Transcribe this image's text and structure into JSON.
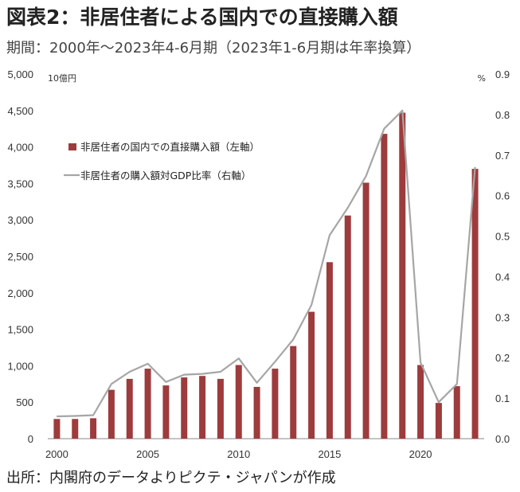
{
  "title": "図表2：非居住者による国内での直接購入額",
  "subtitle": "期間：2000年～2023年4-6月期（2023年1-6月期は年率換算）",
  "source": "出所：内閣府のデータよりピクテ・ジャパンが作成",
  "colors": {
    "bar": "#9e3b3d",
    "line": "#a6a6a6",
    "axis": "#888888"
  },
  "chart_data": {
    "type": "bar+line",
    "categories": [
      "2000",
      "2001",
      "2002",
      "2003",
      "2004",
      "2005",
      "2006",
      "2007",
      "2008",
      "2009",
      "2010",
      "2011",
      "2012",
      "2013",
      "2014",
      "2015",
      "2016",
      "2017",
      "2018",
      "2019",
      "2020",
      "2021",
      "2022",
      "2023"
    ],
    "series": [
      {
        "name": "非居住者の国内での直接購入額（左軸）",
        "type": "bar",
        "axis": "left",
        "values": [
          270,
          270,
          280,
          670,
          820,
          960,
          730,
          840,
          860,
          820,
          1010,
          710,
          960,
          1270,
          1740,
          2420,
          3060,
          3510,
          4180,
          4470,
          1010,
          490,
          720,
          3700
        ]
      },
      {
        "name": "非居住者の購入額対GDP比率（右軸）",
        "type": "line",
        "axis": "right",
        "values": [
          0.055,
          0.056,
          0.058,
          0.135,
          0.165,
          0.185,
          0.14,
          0.158,
          0.16,
          0.165,
          0.198,
          0.138,
          0.19,
          0.245,
          0.33,
          0.502,
          0.57,
          0.648,
          0.765,
          0.81,
          0.188,
          0.09,
          0.135,
          0.67
        ]
      }
    ],
    "x_tick_labels": [
      "2000",
      "2005",
      "2010",
      "2015",
      "2020"
    ],
    "y_left": {
      "unit": "10億円",
      "ylim": [
        0,
        5000
      ],
      "ticks": [
        "0",
        "500",
        "1,000",
        "1,500",
        "2,000",
        "2,500",
        "3,000",
        "3,500",
        "4,000",
        "4,500",
        "5,000"
      ]
    },
    "y_right": {
      "unit": "%",
      "ylim": [
        0,
        0.9
      ],
      "ticks": [
        "0.0",
        "0.1",
        "0.2",
        "0.3",
        "0.4",
        "0.5",
        "0.6",
        "0.7",
        "0.8",
        "0.9"
      ]
    },
    "grid": false,
    "legend_position": "top-left"
  }
}
